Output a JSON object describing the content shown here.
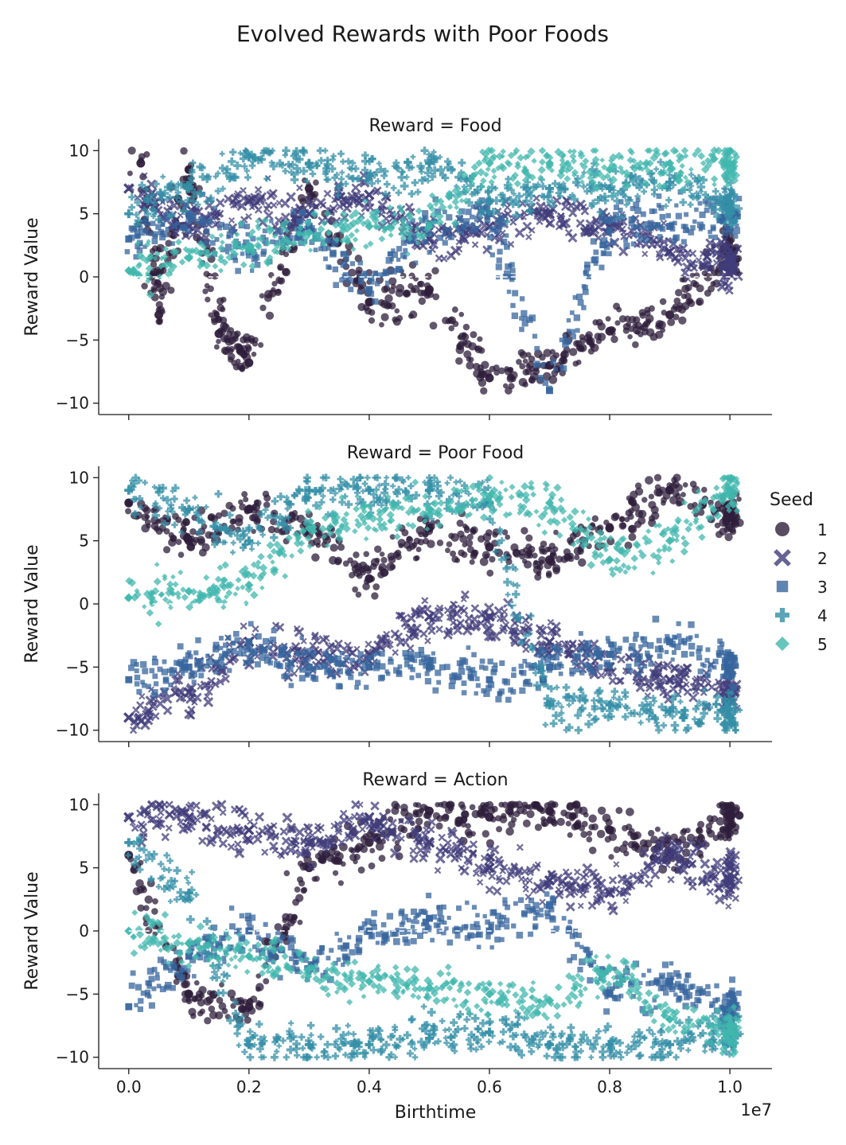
{
  "title": "Evolved Rewards with Poor Foods",
  "chart_data": {
    "type": "scatter",
    "suptitle": "Evolved Rewards with Poor Foods",
    "xlabel": "Birthtime",
    "ylabel": "Reward Value",
    "x_offset_label": "1e7",
    "xlim": [
      -0.05,
      1.07
    ],
    "ylim": [
      -10.9,
      10.9
    ],
    "xticks": [
      0.0,
      0.2,
      0.4,
      0.6,
      0.8,
      1.0
    ],
    "xtick_labels": [
      "0.0",
      "0.2",
      "0.4",
      "0.6",
      "0.8",
      "1.0"
    ],
    "yticks": [
      10,
      5,
      0,
      -5,
      -10
    ],
    "ytick_labels": [
      "10",
      "5",
      "0",
      "−5",
      "−10"
    ],
    "reference_line_y": 0,
    "legend": {
      "title": "Seed",
      "placement": "right-center",
      "entries": [
        {
          "label": "1",
          "marker": "circle",
          "color": "#2e1e3b"
        },
        {
          "label": "2",
          "marker": "x",
          "color": "#413d7b"
        },
        {
          "label": "3",
          "marker": "square",
          "color": "#37659e"
        },
        {
          "label": "4",
          "marker": "plus",
          "color": "#348fa7"
        },
        {
          "label": "5",
          "marker": "diamond",
          "color": "#40b7ad"
        }
      ]
    },
    "panels": [
      {
        "title": "Reward = Food",
        "series": [
          {
            "seed": "1",
            "x": [
              0.02,
              0.05,
              0.1,
              0.15,
              0.2,
              0.3,
              0.4,
              0.5,
              0.6,
              0.7,
              0.8,
              0.9,
              1.0
            ],
            "y": [
              9.0,
              -3.0,
              8.5,
              -4.5,
              -6.8,
              7.0,
              -2.0,
              -1.0,
              -8.0,
              -7.0,
              -4.3,
              -3.0,
              2.0
            ]
          },
          {
            "seed": "2",
            "x": [
              0.0,
              0.1,
              0.2,
              0.3,
              0.4,
              0.5,
              0.6,
              0.7,
              0.8,
              0.9,
              1.0
            ],
            "y": [
              7.0,
              4.0,
              6.0,
              5.0,
              6.5,
              3.0,
              4.0,
              5.0,
              4.0,
              2.0,
              1.0
            ]
          },
          {
            "seed": "3",
            "x": [
              0.0,
              0.1,
              0.2,
              0.3,
              0.4,
              0.5,
              0.6,
              0.7,
              0.8,
              0.9,
              1.0
            ],
            "y": [
              3.0,
              5.0,
              2.0,
              4.0,
              -1.0,
              4.0,
              5.0,
              -9.0,
              4.5,
              4.0,
              5.0
            ]
          },
          {
            "seed": "4",
            "x": [
              0.0,
              0.1,
              0.2,
              0.3,
              0.4,
              0.5,
              0.6,
              0.7,
              0.8,
              0.9,
              1.0
            ],
            "y": [
              5.0,
              7.0,
              9.5,
              9.0,
              8.0,
              9.0,
              6.0,
              7.0,
              7.0,
              7.5,
              6.0
            ]
          },
          {
            "seed": "5",
            "x": [
              0.0,
              0.1,
              0.2,
              0.3,
              0.4,
              0.5,
              0.6,
              0.7,
              0.8,
              0.9,
              1.0
            ],
            "y": [
              0.5,
              1.5,
              2.5,
              3.5,
              4.0,
              4.0,
              9.0,
              9.0,
              8.5,
              9.0,
              9.0
            ]
          }
        ]
      },
      {
        "title": "Reward = Poor Food",
        "series": [
          {
            "seed": "1",
            "x": [
              0.0,
              0.1,
              0.2,
              0.3,
              0.4,
              0.5,
              0.6,
              0.7,
              0.8,
              0.9,
              1.0
            ],
            "y": [
              8.0,
              5.0,
              7.5,
              6.0,
              2.0,
              6.0,
              4.5,
              3.5,
              6.0,
              9.0,
              7.0
            ]
          },
          {
            "seed": "2",
            "x": [
              0.0,
              0.1,
              0.2,
              0.3,
              0.4,
              0.5,
              0.6,
              0.7,
              0.8,
              0.9,
              1.0
            ],
            "y": [
              -9.0,
              -7.0,
              -3.0,
              -4.0,
              -4.0,
              -1.0,
              -1.0,
              -3.0,
              -5.0,
              -6.0,
              -7.0
            ]
          },
          {
            "seed": "3",
            "x": [
              0.0,
              0.1,
              0.2,
              0.3,
              0.4,
              0.5,
              0.6,
              0.7,
              0.8,
              0.9,
              1.0
            ],
            "y": [
              -6.0,
              -5.0,
              -3.0,
              -5.0,
              -5.0,
              -5.0,
              -6.0,
              -5.0,
              -4.0,
              -3.0,
              -5.0
            ]
          },
          {
            "seed": "4",
            "x": [
              0.0,
              0.1,
              0.2,
              0.3,
              0.4,
              0.5,
              0.6,
              0.7,
              0.8,
              0.9,
              1.0
            ],
            "y": [
              9.0,
              7.5,
              5.0,
              9.0,
              9.0,
              9.0,
              8.0,
              -8.0,
              -8.0,
              -8.5,
              -9.0
            ]
          },
          {
            "seed": "5",
            "x": [
              0.0,
              0.1,
              0.2,
              0.3,
              0.4,
              0.5,
              0.6,
              0.7,
              0.8,
              0.9,
              1.0
            ],
            "y": [
              0.5,
              1.0,
              1.5,
              6.0,
              7.0,
              7.5,
              8.5,
              8.0,
              3.5,
              5.0,
              9.0
            ]
          }
        ]
      },
      {
        "title": "Reward = Action",
        "series": [
          {
            "seed": "1",
            "x": [
              0.0,
              0.1,
              0.2,
              0.3,
              0.4,
              0.5,
              0.6,
              0.7,
              0.8,
              0.9,
              1.0
            ],
            "y": [
              6.0,
              -5.0,
              -6.0,
              5.0,
              7.0,
              9.5,
              9.0,
              9.5,
              8.0,
              6.0,
              9.0
            ]
          },
          {
            "seed": "2",
            "x": [
              0.0,
              0.1,
              0.2,
              0.3,
              0.4,
              0.5,
              0.6,
              0.7,
              0.8,
              0.9,
              1.0
            ],
            "y": [
              9.0,
              9.0,
              8.0,
              7.0,
              9.0,
              7.0,
              5.0,
              4.0,
              3.0,
              6.0,
              4.0
            ]
          },
          {
            "seed": "3",
            "x": [
              0.0,
              0.1,
              0.2,
              0.3,
              0.4,
              0.5,
              0.6,
              0.7,
              0.8,
              0.9,
              1.0
            ],
            "y": [
              -6.0,
              -2.0,
              0.0,
              -3.0,
              0.0,
              1.0,
              0.0,
              2.0,
              -5.0,
              -4.0,
              -6.0
            ]
          },
          {
            "seed": "4",
            "x": [
              0.0,
              0.1,
              0.2,
              0.3,
              0.4,
              0.5,
              0.6,
              0.7,
              0.8,
              0.9,
              1.0
            ],
            "y": [
              7.0,
              3.0,
              -9.0,
              -9.0,
              -9.0,
              -8.5,
              -8.0,
              -9.0,
              -9.0,
              -9.0,
              -8.0
            ]
          },
          {
            "seed": "5",
            "x": [
              0.0,
              0.1,
              0.2,
              0.3,
              0.4,
              0.5,
              0.6,
              0.7,
              0.8,
              0.9,
              1.0
            ],
            "y": [
              0.0,
              -1.0,
              -2.0,
              -3.0,
              -4.0,
              -4.5,
              -5.0,
              -5.5,
              -3.0,
              -7.0,
              -8.0
            ]
          }
        ]
      }
    ]
  }
}
